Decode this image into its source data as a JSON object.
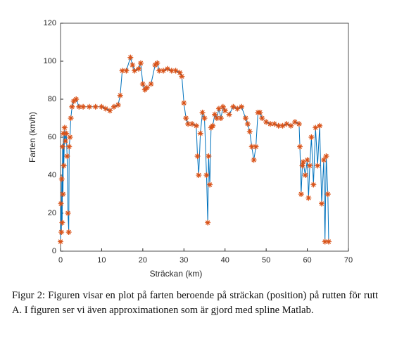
{
  "chart_data": {
    "type": "line",
    "x_label": "Sträckan (km)",
    "y_label": "Farten (km/h)",
    "xlim": [
      0,
      70
    ],
    "xticks": [
      0,
      10,
      20,
      30,
      40,
      50,
      60,
      70
    ],
    "ylim": [
      0,
      120
    ],
    "yticks": [
      0,
      20,
      40,
      60,
      80,
      100,
      120
    ],
    "line_color": "#0072bd",
    "marker_color": "#d95319",
    "marker": "asterisk",
    "x": [
      0,
      0.1,
      0.2,
      0.3,
      0.4,
      0.5,
      0.6,
      0.7,
      0.8,
      1.0,
      1.2,
      1.4,
      1.6,
      1.8,
      2.0,
      2.1,
      2.3,
      2.5,
      2.8,
      3.2,
      3.8,
      4.5,
      5.5,
      7,
      8.5,
      10,
      11,
      12,
      13,
      14,
      14.5,
      15,
      16,
      17,
      17.5,
      18,
      19,
      19.5,
      20,
      20.5,
      21,
      22,
      23,
      23.5,
      24,
      25,
      26,
      27,
      28,
      29,
      29.5,
      30,
      30.5,
      31,
      32,
      33,
      33.3,
      33.6,
      34,
      34.5,
      35,
      35.5,
      35.8,
      36,
      36.3,
      36.6,
      37,
      37.5,
      38,
      38.5,
      39,
      39.5,
      40,
      41,
      42,
      43,
      44,
      45,
      45.5,
      46,
      46.5,
      47,
      47.5,
      48,
      48.5,
      49,
      50,
      51,
      52,
      53,
      54,
      55,
      56,
      57,
      58,
      58.2,
      58.5,
      58.8,
      59,
      59.5,
      60,
      60.3,
      60.6,
      61,
      61.5,
      62,
      62.5,
      63,
      63.5,
      64,
      64.3,
      64.6,
      65,
      65.2
    ],
    "values": [
      5,
      25,
      10,
      38,
      15,
      55,
      30,
      62,
      45,
      65,
      58,
      62,
      50,
      20,
      10,
      55,
      60,
      70,
      76,
      79,
      80,
      76,
      76,
      76,
      76,
      76,
      75,
      74,
      76,
      77,
      82,
      95,
      95,
      102,
      98,
      95,
      96,
      99,
      88,
      85,
      86,
      88,
      98,
      99,
      95,
      95,
      96,
      95,
      95,
      94,
      92,
      78,
      70,
      67,
      67,
      66,
      50,
      40,
      62,
      73,
      70,
      40,
      15,
      50,
      35,
      65,
      66,
      72,
      70,
      75,
      70,
      76,
      74,
      72,
      76,
      75,
      76,
      70,
      67,
      63,
      55,
      48,
      55,
      73,
      73,
      70,
      68,
      67,
      67,
      66,
      66,
      67,
      66,
      68,
      67,
      55,
      30,
      45,
      47,
      40,
      48,
      28,
      45,
      60,
      35,
      65,
      45,
      66,
      25,
      48,
      5,
      50,
      30,
      5
    ]
  },
  "caption": "Figur 2: Figuren visar en plot på farten beroende på sträckan (position) på rutten för rutt A. I figuren ser vi även approximationen som är gjord med spline Matlab."
}
